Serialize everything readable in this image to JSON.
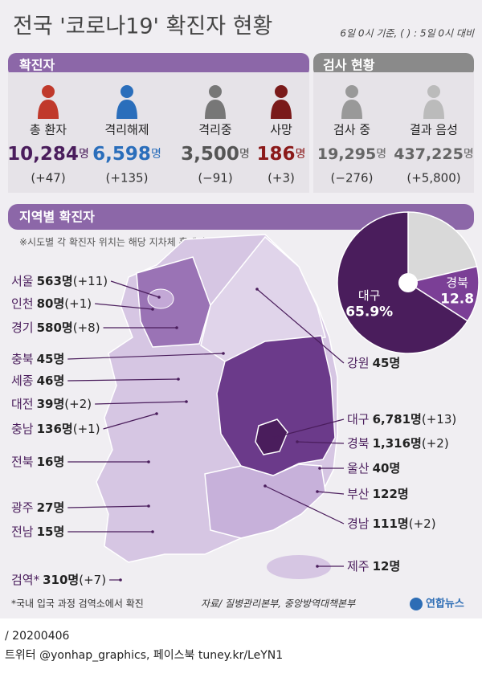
{
  "header": {
    "title": "전국 '코로나19' 확진자 현황",
    "note": "6일 0시 기준, ( ) : 5일 0시 대비"
  },
  "confirmed": {
    "title": "확진자",
    "items": [
      {
        "label": "총 환자",
        "value": "10,284",
        "unit": "명",
        "change": "(+47)"
      },
      {
        "label": "격리해제",
        "value": "6,598",
        "unit": "명",
        "change": "(+135)"
      },
      {
        "label": "격리중",
        "value": "3,500",
        "unit": "명",
        "change": "(−91)"
      },
      {
        "label": "사망",
        "value": "186",
        "unit": "명",
        "change": "(+3)"
      }
    ]
  },
  "tests": {
    "title": "검사 현황",
    "items": [
      {
        "label": "검사 중",
        "value": "19,295",
        "unit": "명",
        "change": "(−276)"
      },
      {
        "label": "결과 음성",
        "value": "437,225",
        "unit": "명",
        "change": "(+5,800)"
      }
    ]
  },
  "regional": {
    "title": "지역별 확진자",
    "note": "※시도별 각 확진자 위치는 해당 지차체 홈페이지 참조",
    "regions": [
      {
        "name": "서울",
        "count": "563명",
        "change": "(+11)"
      },
      {
        "name": "인천",
        "count": "80명",
        "change": "(+1)"
      },
      {
        "name": "경기",
        "count": "580명",
        "change": "(+8)"
      },
      {
        "name": "충북",
        "count": "45명"
      },
      {
        "name": "세종",
        "count": "46명"
      },
      {
        "name": "대전",
        "count": "39명",
        "change": "(+2)"
      },
      {
        "name": "충남",
        "count": "136명",
        "change": "(+1)"
      },
      {
        "name": "전북",
        "count": "16명"
      },
      {
        "name": "광주",
        "count": "27명"
      },
      {
        "name": "전남",
        "count": "15명"
      },
      {
        "name": "검역*",
        "count": "310명",
        "change": "(+7)"
      },
      {
        "name": "강원",
        "count": "45명"
      },
      {
        "name": "대구",
        "count": "6,781명",
        "change": "(+13)"
      },
      {
        "name": "경북",
        "count": "1,316명",
        "change": "(+2)"
      },
      {
        "name": "울산",
        "count": "40명"
      },
      {
        "name": "부산",
        "count": "122명"
      },
      {
        "name": "경남",
        "count": "111명",
        "change": "(+2)"
      },
      {
        "name": "제주",
        "count": "12명"
      }
    ]
  },
  "chart_data": {
    "type": "pie",
    "categories": [
      null,
      "경북",
      "대구"
    ],
    "values": [
      21.3,
      12.8,
      65.9
    ],
    "value_labels": [
      null,
      "12.8",
      "65.9%"
    ],
    "colors": [
      "#d9d9d9",
      "#7b3f96",
      "#4a1d5c"
    ]
  },
  "footer": {
    "footnote": "*국내 입국 과정 검역소에서 확진",
    "source": "자료/ 질병관리본부, 중앙방역대책본부",
    "logo": "연합뉴스",
    "date": "/ 20200406",
    "social": "트위터 @yonhap_graphics, 페이스북 tuney.kr/LeYN1"
  }
}
